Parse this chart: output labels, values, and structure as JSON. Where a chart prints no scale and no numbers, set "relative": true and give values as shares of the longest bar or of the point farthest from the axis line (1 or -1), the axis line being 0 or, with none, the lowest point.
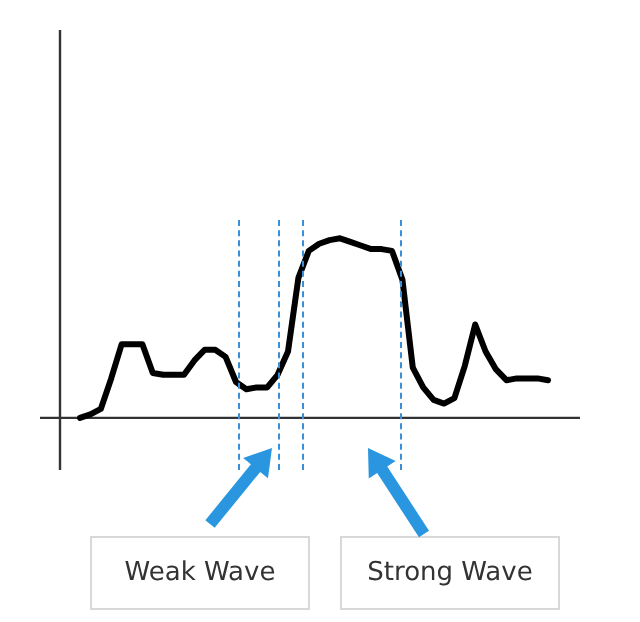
{
  "chart_data": {
    "type": "line",
    "relative": true,
    "marker": "none",
    "line_style": "solid",
    "categories": [
      null,
      null,
      null,
      null,
      null,
      null,
      null,
      null,
      null,
      null,
      null,
      null,
      null,
      null,
      null,
      null,
      null,
      null,
      null,
      null,
      null,
      null,
      null,
      null,
      null,
      null,
      null,
      null,
      null,
      null,
      null,
      null,
      null,
      null,
      null,
      null,
      null,
      null,
      null,
      null,
      null,
      null,
      null,
      null,
      null,
      null
    ],
    "series": [
      {
        "color": "#000000",
        "values": [
          0,
          0.02,
          0.05,
          0.22,
          0.41,
          0.41,
          0.41,
          0.25,
          0.24,
          0.24,
          0.24,
          0.32,
          0.38,
          0.38,
          0.34,
          0.2,
          0.16,
          0.17,
          0.17,
          0.24,
          0.37,
          0.78,
          0.93,
          0.97,
          0.99,
          1,
          0.98,
          0.96,
          0.94,
          0.94,
          0.93,
          0.77,
          0.28,
          0.17,
          0.1,
          0.08,
          0.11,
          0.29,
          0.52,
          0.37,
          0.27,
          0.21,
          0.22,
          0.22,
          0.22,
          0.21
        ]
      }
    ],
    "annotations": [
      "Weak Wave",
      "Strong Wave"
    ]
  }
}
